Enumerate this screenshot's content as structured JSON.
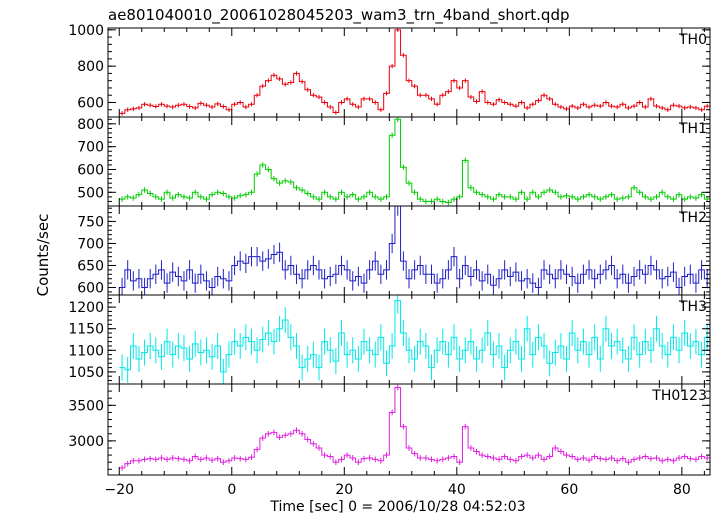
{
  "chart_data": {
    "type": "line",
    "title": "ae801040010_20061028045203_wam3_trn_4band_short.qdp",
    "xlabel": "Time [sec] 0 = 2006/10/28 04:52:03",
    "ylabel": "Counts/sec",
    "xlim": [
      -22,
      85
    ],
    "xticks": [
      -20,
      0,
      20,
      40,
      60,
      80
    ],
    "x_start": -20,
    "bin_width": 1,
    "panels": [
      {
        "name": "TH0",
        "color": "#e8000b",
        "ylim": [
          520,
          1010
        ],
        "yticks": [
          600,
          800,
          1000
        ],
        "errorbar": 12,
        "values": [
          540,
          560,
          565,
          570,
          590,
          585,
          578,
          590,
          580,
          575,
          585,
          590,
          578,
          570,
          595,
          585,
          575,
          592,
          578,
          560,
          590,
          600,
          575,
          590,
          640,
          690,
          720,
          750,
          730,
          700,
          710,
          760,
          715,
          670,
          640,
          630,
          600,
          575,
          545,
          600,
          620,
          590,
          575,
          620,
          620,
          600,
          560,
          650,
          800,
          1000,
          860,
          720,
          690,
          640,
          640,
          620,
          590,
          640,
          660,
          720,
          680,
          720,
          630,
          605,
          660,
          600,
          590,
          615,
          600,
          590,
          580,
          600,
          570,
          590,
          610,
          640,
          620,
          590,
          575,
          565,
          580,
          570,
          590,
          575,
          585,
          580,
          600,
          580,
          575,
          590,
          570,
          580,
          600,
          575,
          620,
          580,
          570,
          560,
          585,
          580,
          570,
          575,
          570,
          560,
          580,
          560,
          590,
          555
        ]
      },
      {
        "name": "TH1",
        "color": "#00cc00",
        "ylim": [
          440,
          830
        ],
        "yticks": [
          500,
          600,
          700,
          800
        ],
        "errorbar": 12,
        "values": [
          470,
          480,
          475,
          490,
          510,
          495,
          480,
          470,
          500,
          475,
          490,
          480,
          475,
          500,
          480,
          470,
          490,
          500,
          495,
          480,
          475,
          485,
          490,
          500,
          580,
          620,
          600,
          560,
          540,
          550,
          545,
          520,
          510,
          495,
          480,
          470,
          500,
          480,
          470,
          500,
          480,
          490,
          470,
          480,
          500,
          480,
          470,
          480,
          750,
          820,
          610,
          540,
          500,
          470,
          460,
          460,
          470,
          460,
          455,
          470,
          480,
          640,
          520,
          500,
          490,
          480,
          470,
          490,
          480,
          480,
          470,
          500,
          470,
          500,
          480,
          500,
          510,
          500,
          480,
          485,
          480,
          470,
          480,
          490,
          480,
          470,
          480,
          490,
          470,
          475,
          480,
          520,
          500,
          480,
          470,
          480,
          500,
          480,
          470,
          490,
          470,
          480,
          475,
          490,
          470,
          480,
          490,
          470,
          480
        ]
      },
      {
        "name": "TH2",
        "color": "#2020c8",
        "ylim": [
          583,
          785
        ],
        "yticks": [
          600,
          650,
          700,
          750
        ],
        "errorbar": 22,
        "values": [
          600,
          640,
          615,
          620,
          600,
          620,
          630,
          640,
          610,
          635,
          625,
          615,
          640,
          610,
          630,
          615,
          600,
          625,
          620,
          615,
          650,
          660,
          655,
          670,
          670,
          660,
          665,
          675,
          680,
          640,
          650,
          630,
          620,
          640,
          650,
          640,
          620,
          625,
          630,
          650,
          640,
          615,
          625,
          610,
          640,
          660,
          630,
          640,
          700,
          785,
          660,
          620,
          640,
          650,
          630,
          630,
          610,
          620,
          640,
          670,
          620,
          650,
          625,
          640,
          615,
          630,
          605,
          620,
          640,
          625,
          635,
          615,
          620,
          610,
          600,
          640,
          630,
          620,
          640,
          630,
          625,
          610,
          630,
          640,
          620,
          630,
          640,
          650,
          620,
          630,
          610,
          625,
          640,
          630,
          650,
          640,
          620,
          625,
          635,
          600,
          625,
          630,
          610,
          640,
          620,
          625,
          630,
          620
        ]
      },
      {
        "name": "TH3",
        "color": "#00e8e8",
        "ylim": [
          1022,
          1228
        ],
        "yticks": [
          1050,
          1100,
          1150,
          1200
        ],
        "errorbar": 30,
        "values": [
          1060,
          1055,
          1110,
          1080,
          1095,
          1110,
          1100,
          1085,
          1120,
          1090,
          1110,
          1105,
          1080,
          1115,
          1095,
          1100,
          1085,
          1110,
          1050,
          1090,
          1120,
          1110,
          1130,
          1120,
          1100,
          1125,
          1140,
          1120,
          1150,
          1170,
          1130,
          1110,
          1060,
          1080,
          1090,
          1060,
          1120,
          1100,
          1075,
          1140,
          1090,
          1100,
          1080,
          1120,
          1100,
          1090,
          1130,
          1070,
          1110,
          1215,
          1140,
          1100,
          1080,
          1120,
          1110,
          1060,
          1100,
          1120,
          1090,
          1130,
          1080,
          1100,
          1120,
          1080,
          1100,
          1140,
          1090,
          1110,
          1060,
          1100,
          1120,
          1080,
          1150,
          1090,
          1130,
          1110,
          1070,
          1095,
          1110,
          1080,
          1140,
          1100,
          1120,
          1090,
          1130,
          1080,
          1150,
          1110,
          1120,
          1100,
          1080,
          1130,
          1090,
          1120,
          1100,
          1150,
          1110,
          1090,
          1130,
          1100,
          1140,
          1110,
          1120,
          1090,
          1130,
          1150,
          1140,
          1120
        ]
      },
      {
        "name": "TH0123",
        "color": "#e020e0",
        "ylim": [
          2520,
          3800
        ],
        "yticks": [
          3000,
          3500
        ],
        "errorbar": 40,
        "values": [
          2620,
          2680,
          2720,
          2720,
          2740,
          2750,
          2740,
          2760,
          2740,
          2760,
          2750,
          2740,
          2720,
          2780,
          2740,
          2760,
          2730,
          2750,
          2700,
          2720,
          2760,
          2750,
          2740,
          2770,
          2880,
          3040,
          3100,
          3120,
          3050,
          3080,
          3100,
          3150,
          3100,
          3020,
          2960,
          2900,
          2800,
          2780,
          2700,
          2740,
          2800,
          2760,
          2700,
          2750,
          2760,
          2740,
          2720,
          2800,
          3400,
          3750,
          3200,
          2900,
          2820,
          2760,
          2760,
          2740,
          2720,
          2740,
          2760,
          2780,
          2700,
          3200,
          2900,
          2850,
          2800,
          2780,
          2760,
          2740,
          2780,
          2740,
          2720,
          2780,
          2800,
          2760,
          2800,
          2740,
          2780,
          2900,
          2850,
          2800,
          2780,
          2740,
          2760,
          2730,
          2780,
          2750,
          2740,
          2760,
          2720,
          2750,
          2700,
          2740,
          2760,
          2780,
          2750,
          2760,
          2720,
          2740,
          2720,
          2760,
          2780,
          2750,
          2740,
          2780,
          2760,
          2700,
          2720
        ]
      }
    ]
  }
}
